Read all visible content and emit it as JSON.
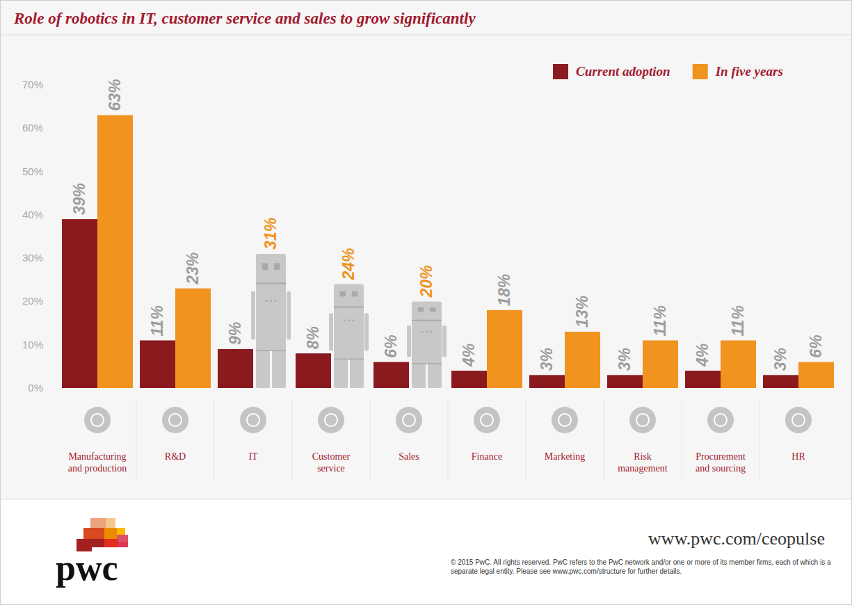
{
  "chart_data": {
    "type": "bar",
    "title": "Role of robotics in IT, customer service and sales to grow significantly",
    "categories": [
      "Manufacturing and production",
      "R&D",
      "IT",
      "Customer service",
      "Sales",
      "Finance",
      "Marketing",
      "Risk management",
      "Procurement and sourcing",
      "HR"
    ],
    "series": [
      {
        "name": "Current adoption",
        "color": "#8b1a1f",
        "values": [
          39,
          11,
          9,
          8,
          6,
          4,
          3,
          3,
          4,
          3
        ],
        "value_labels": [
          "39%",
          "11%",
          "9%",
          "8%",
          "6%",
          "4%",
          "3%",
          "3%",
          "4%",
          "3%"
        ]
      },
      {
        "name": "In five years",
        "color": "#f0931f",
        "colors": [
          "#f0931f",
          "#f0931f",
          "#c8c8c8",
          "#c8c8c8",
          "#c8c8c8",
          "#f0931f",
          "#f0931f",
          "#f0931f",
          "#f0931f",
          "#f0931f"
        ],
        "values": [
          63,
          23,
          31,
          24,
          20,
          18,
          13,
          11,
          11,
          6
        ],
        "value_labels": [
          "63%",
          "23%",
          "31%",
          "24%",
          "20%",
          "18%",
          "13%",
          "11%",
          "11%",
          "6%"
        ]
      }
    ],
    "ylim": [
      0,
      70
    ],
    "yticks": [
      {
        "value": 0,
        "label": "0%"
      },
      {
        "value": 10,
        "label": "10%"
      },
      {
        "value": 20,
        "label": "20%"
      },
      {
        "value": 30,
        "label": "30%"
      },
      {
        "value": 40,
        "label": "40%"
      },
      {
        "value": 50,
        "label": "50%"
      },
      {
        "value": 60,
        "label": "60%"
      },
      {
        "value": 70,
        "label": "70%"
      }
    ],
    "grid": false,
    "legend": "top-right",
    "data_labels": true
  },
  "footer": {
    "logo": "pwc",
    "url": "www.pwc.com/ceopulse",
    "copyright": "© 2015 PwC. All rights reserved. PwC refers to the PwC network and/or one or more of its member firms, each of which is a separate legal entity. Please see www.pwc.com/structure for further details."
  }
}
